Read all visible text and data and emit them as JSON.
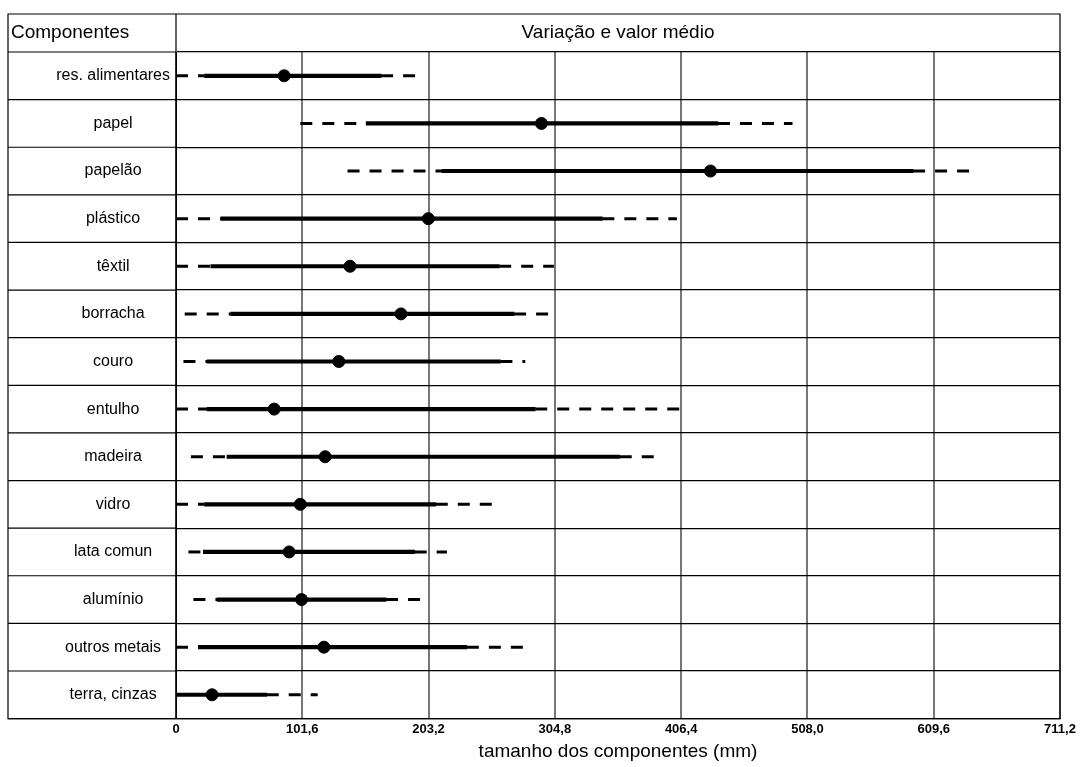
{
  "chart_data": {
    "type": "box",
    "orientation": "horizontal",
    "title": "Variação e valor médio",
    "ylabel": "Componentes",
    "xlabel": "tamanho dos componentes (mm)",
    "categories": [
      "res. alimentares",
      "papel",
      "papelão",
      "plástico",
      "têxtil",
      "borracha",
      "couro",
      "entulho",
      "madeira",
      "vidro",
      "lata comun",
      "alumínio",
      "outros metais",
      "terra, cinzas"
    ],
    "color": "#000000",
    "marker": "circle",
    "boxes": [
      {
        "low": 0,
        "q1": 23,
        "median": 87,
        "q3": 165,
        "high": 193
      },
      {
        "low": 100,
        "q1": 153,
        "median": 294,
        "q3": 436,
        "high": 496
      },
      {
        "low": 138,
        "q1": 214,
        "median": 430,
        "q3": 593,
        "high": 643
      },
      {
        "low": 0,
        "q1": 36,
        "median": 203,
        "q3": 343,
        "high": 403
      },
      {
        "low": 0,
        "q1": 28,
        "median": 140,
        "q3": 260,
        "high": 304
      },
      {
        "low": 7,
        "q1": 44,
        "median": 181,
        "q3": 272,
        "high": 304
      },
      {
        "low": 6,
        "q1": 25,
        "median": 131,
        "q3": 261,
        "high": 281
      },
      {
        "low": 0,
        "q1": 25,
        "median": 79,
        "q3": 289,
        "high": 406
      },
      {
        "low": 12,
        "q1": 41,
        "median": 120,
        "q3": 357,
        "high": 391
      },
      {
        "low": 0,
        "q1": 23,
        "median": 100,
        "q3": 209,
        "high": 257
      },
      {
        "low": 10,
        "q1": 22,
        "median": 91,
        "q3": 192,
        "high": 218
      },
      {
        "low": 14,
        "q1": 33,
        "median": 101,
        "q3": 169,
        "high": 198
      },
      {
        "low": 0,
        "q1": 18,
        "median": 119,
        "q3": 234,
        "high": 285
      },
      {
        "low": 0,
        "q1": 0,
        "median": 29,
        "q3": 73,
        "high": 114
      }
    ],
    "xlim": [
      0,
      711.2
    ],
    "xticks": [
      0,
      {
        "value": 101.6,
        "label": "101,6"
      },
      {
        "value": 203.2,
        "label": "203,2"
      },
      {
        "value": 304.8,
        "label": "304,8"
      },
      {
        "value": 406.4,
        "label": "406,4"
      },
      {
        "value": 508,
        "label": "508,0"
      },
      {
        "value": 609.6,
        "label": "609,6"
      },
      {
        "value": 711.2,
        "label": "711,2"
      }
    ],
    "grid": true
  }
}
